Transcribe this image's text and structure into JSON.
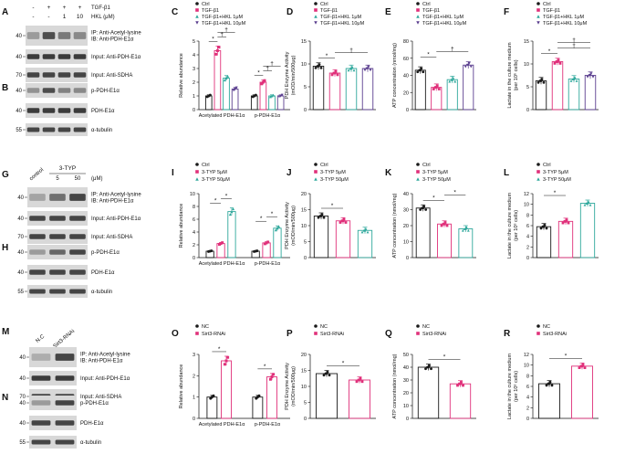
{
  "colors": {
    "black": "#1a1a1a",
    "pink": "#e0307a",
    "teal": "#2fa89c",
    "purple": "#5b3f8f",
    "band": "#2b2b2b",
    "blot_bg": "#d8d8d8"
  },
  "blots": [
    {
      "id": "A",
      "treat_rows": [
        {
          "label": "TGF-β1",
          "values": [
            "-",
            "+",
            "+",
            "+"
          ]
        },
        {
          "label": "HKL (μM)",
          "values": [
            "-",
            "-",
            "1",
            "10"
          ]
        }
      ],
      "panels": [
        {
          "mw": "40",
          "label_lines": [
            "IP: Anti-Acetyl-lysine",
            "IB: Anti-PDH-E1α"
          ],
          "intensity": [
            0.35,
            0.8,
            0.55,
            0.45
          ]
        },
        {
          "mw": "40",
          "label_lines": [
            "Input: Anti-PDH-E1α"
          ],
          "intensity": [
            0.9,
            0.9,
            0.9,
            0.9
          ]
        },
        {
          "mw": "70",
          "label_lines": [
            "Input: Anti-SDHA"
          ],
          "intensity": [
            0.85,
            0.85,
            0.85,
            0.85
          ]
        }
      ]
    },
    {
      "id": "B",
      "panels": [
        {
          "mw": "40",
          "label_lines": [
            "p-PDH-E1α"
          ],
          "intensity": [
            0.4,
            0.8,
            0.5,
            0.45
          ]
        },
        {
          "mw": "40",
          "label_lines": [
            "PDH-E1α"
          ],
          "intensity": [
            0.9,
            0.9,
            0.9,
            0.9
          ]
        },
        {
          "mw": "55",
          "label_lines": [
            "α-tubulin"
          ],
          "intensity": [
            0.85,
            0.85,
            0.85,
            0.85
          ]
        }
      ]
    },
    {
      "id": "G",
      "col_labels": [
        "control",
        "5",
        "50"
      ],
      "group_label": "3-TYP",
      "unit_label": "(μM)",
      "panels": [
        {
          "mw": "40",
          "label_lines": [
            "IP: Anti-Acetyl-lysine",
            "IB: Anti-PDH-E1α"
          ],
          "intensity": [
            0.3,
            0.6,
            0.85
          ]
        },
        {
          "mw": "40",
          "label_lines": [
            "Input: Anti-PDH-E1α"
          ],
          "intensity": [
            0.85,
            0.85,
            0.85
          ]
        },
        {
          "mw": "70",
          "label_lines": [
            "Input: Anti-SDHA"
          ],
          "intensity": [
            0.85,
            0.85,
            0.85
          ]
        }
      ]
    },
    {
      "id": "H",
      "panels": [
        {
          "mw": "40",
          "label_lines": [
            "p-PDH-E1α"
          ],
          "intensity": [
            0.35,
            0.65,
            0.85
          ]
        },
        {
          "mw": "40",
          "label_lines": [
            "PDH-E1α"
          ],
          "intensity": [
            0.85,
            0.85,
            0.85
          ]
        },
        {
          "mw": "55",
          "label_lines": [
            "α-tubulin"
          ],
          "intensity": [
            0.85,
            0.85,
            0.85
          ]
        }
      ]
    },
    {
      "id": "M",
      "col_labels": [
        "N.C",
        "Sirt3-RNAi"
      ],
      "panels": [
        {
          "mw": "40",
          "label_lines": [
            "IP: Anti-Acetyl-lysine",
            "IB: Anti-PDH-E1α"
          ],
          "intensity": [
            0.25,
            0.85
          ]
        },
        {
          "mw": "40",
          "label_lines": [
            "Input: Anti-PDH-E1α"
          ],
          "intensity": [
            0.9,
            0.9
          ]
        },
        {
          "mw": "70",
          "label_lines": [
            "Input: Anti-SDHA"
          ],
          "intensity": [
            0.85,
            0.85
          ]
        }
      ]
    },
    {
      "id": "N",
      "panels": [
        {
          "mw": "40",
          "label_lines": [
            "p-PDH-E1α"
          ],
          "intensity": [
            0.35,
            0.85
          ]
        },
        {
          "mw": "40",
          "label_lines": [
            "PDH-E1α"
          ],
          "intensity": [
            0.85,
            0.85
          ]
        },
        {
          "mw": "55",
          "label_lines": [
            "α-tubulin"
          ],
          "intensity": [
            0.85,
            0.85
          ]
        }
      ]
    }
  ],
  "chart_data": [
    {
      "id": "C",
      "type": "bar",
      "ylabel": "Relative abundance",
      "ylim": [
        0,
        5
      ],
      "yticks": [
        "0",
        "1",
        "2",
        "3",
        "4",
        "5"
      ],
      "categories": [
        "Acetylated PDH-E1α",
        "p-PDH-E1α"
      ],
      "series": [
        {
          "name": "Ctrl",
          "values": [
            1.0,
            1.0
          ]
        },
        {
          "name": "TGF-β1",
          "values": [
            4.3,
            2.0
          ]
        },
        {
          "name": "TGF-β1+HKL 1μM",
          "values": [
            2.3,
            1.0
          ]
        },
        {
          "name": "TGF-β1+HKL 10μM",
          "values": [
            1.5,
            1.0
          ]
        }
      ],
      "legend": [
        "Ctrl",
        "TGF-β1",
        "TGF-β1+HKL 1μM",
        "TGF-β1+HKL 10μM"
      ],
      "annotations": [
        "*",
        "†",
        "†",
        "*",
        "†",
        "†"
      ]
    },
    {
      "id": "D",
      "type": "bar",
      "ylabel": "PDH Enzyme Activity",
      "ylabel2": "(mOD/min/500μg)",
      "ylim": [
        0,
        15
      ],
      "yticks": [
        "0",
        "5",
        "10",
        "15"
      ],
      "categories": [
        "Ctrl",
        "TGF-β1",
        "TGF-β1+HKL 1μM",
        "TGF-β1+HKL 10μM"
      ],
      "series": [
        {
          "name": "value",
          "values": [
            9.5,
            8.0,
            9.0,
            9.0
          ]
        }
      ],
      "legend": [
        "Ctrl",
        "TGF-β1",
        "TGF-β1+HKL 1μM",
        "TGF-β1+HKL 10μM"
      ],
      "annotations": [
        "*",
        "†"
      ]
    },
    {
      "id": "E",
      "type": "bar",
      "ylabel": "ATP concentration (nmol/mg)",
      "ylim": [
        0,
        80
      ],
      "yticks": [
        "0",
        "20",
        "40",
        "60",
        "80"
      ],
      "categories": [
        "Ctrl",
        "TGF-β1",
        "TGF-β1+HKL 1μM",
        "TGF-β1+HKL 10μM"
      ],
      "series": [
        {
          "name": "value",
          "values": [
            46,
            26,
            35,
            52
          ]
        }
      ],
      "legend": [
        "Ctrl",
        "TGF-β1",
        "TGF-β1+HKL 1μM",
        "TGF-β1+HKL 10μM"
      ],
      "annotations": [
        "*",
        "†"
      ]
    },
    {
      "id": "F",
      "type": "bar",
      "ylabel": "Lactate in the culture medium",
      "ylabel2": "(per 10⁶ cells)",
      "ylim": [
        0,
        15
      ],
      "yticks": [
        "0",
        "5",
        "10",
        "15"
      ],
      "categories": [
        "Ctrl",
        "TGF-β1",
        "TGF-β1+HKL 1μM",
        "TGF-β1+HKL 10μM"
      ],
      "series": [
        {
          "name": "value",
          "values": [
            6.3,
            10.5,
            6.7,
            7.5
          ]
        }
      ],
      "legend": [
        "Ctrl",
        "TGF-β1",
        "TGF-β1+HKL 1μM",
        "TGF-β1+HKL 10μM"
      ],
      "annotations": [
        "*",
        "†",
        "†"
      ]
    },
    {
      "id": "I",
      "type": "bar",
      "ylabel": "Relative abundance",
      "ylim": [
        0,
        10
      ],
      "yticks": [
        "0",
        "2",
        "4",
        "6",
        "8",
        "10"
      ],
      "categories": [
        "Acetylated PDH-E1α",
        "p-PDH-E1α"
      ],
      "series": [
        {
          "name": "Ctrl",
          "values": [
            1.0,
            1.0
          ]
        },
        {
          "name": "3-TYP 5μM",
          "values": [
            2.2,
            2.3
          ]
        },
        {
          "name": "3-TYP 50μM",
          "values": [
            7.2,
            4.6
          ]
        }
      ],
      "legend": [
        "Ctrl",
        "3-TYP 5μM",
        "3-TYP 50μM"
      ],
      "annotations": [
        "*",
        "*",
        "*",
        "*"
      ]
    },
    {
      "id": "J",
      "type": "bar",
      "ylabel": "PDH Enzyme Activity",
      "ylabel2": "(mOD/min/500μg)",
      "ylim": [
        0,
        20
      ],
      "yticks": [
        "0",
        "5",
        "10",
        "15",
        "20"
      ],
      "categories": [
        "Ctrl",
        "3-TYP 5μM",
        "3-TYP 50μM"
      ],
      "series": [
        {
          "name": "value",
          "values": [
            13,
            11.5,
            8.5
          ]
        }
      ],
      "legend": [
        "Ctrl",
        "3-TYP 5μM",
        "3-TYP 50μM"
      ],
      "annotations": [
        "*"
      ]
    },
    {
      "id": "K",
      "type": "bar",
      "ylabel": "ATP concentration (nmol/mg)",
      "ylim": [
        0,
        40
      ],
      "yticks": [
        "0",
        "10",
        "20",
        "30",
        "40"
      ],
      "categories": [
        "Ctrl",
        "3-TYP 5μM",
        "3-TYP 50μM"
      ],
      "series": [
        {
          "name": "value",
          "values": [
            31,
            21,
            18
          ]
        }
      ],
      "legend": [
        "Ctrl",
        "3-TYP 5μM",
        "3-TYP 50μM"
      ],
      "annotations": [
        "*",
        "*"
      ]
    },
    {
      "id": "L",
      "type": "bar",
      "ylabel": "Lactate in the culture medium",
      "ylabel2": "(per 10⁶ cells)",
      "ylim": [
        0,
        12
      ],
      "yticks": [
        "0",
        "2",
        "4",
        "6",
        "8",
        "10",
        "12"
      ],
      "categories": [
        "Ctrl",
        "3-TYP 5μM",
        "3-TYP 50μM"
      ],
      "series": [
        {
          "name": "value",
          "values": [
            5.8,
            6.8,
            10.2
          ]
        }
      ],
      "legend": [
        "Ctrl",
        "3-TYP 5μM",
        "3-TYP 50μM"
      ],
      "annotations": [
        "*"
      ]
    },
    {
      "id": "O",
      "type": "bar",
      "ylabel": "Relative abundance",
      "ylim": [
        0,
        3
      ],
      "yticks": [
        "0",
        "1",
        "2",
        "3"
      ],
      "categories": [
        "Acetylated PDH-E1α",
        "p-PDH-E1α"
      ],
      "series": [
        {
          "name": "NC",
          "values": [
            1.0,
            1.0
          ]
        },
        {
          "name": "Sirt3-RNAi",
          "values": [
            2.7,
            1.95
          ]
        }
      ],
      "legend": [
        "NC",
        "Sirt3-RNAi"
      ],
      "annotations": [
        "*",
        "*"
      ]
    },
    {
      "id": "P",
      "type": "bar",
      "ylabel": "PDH Enzyme Activity",
      "ylabel2": "(mOD/min/500μg)",
      "ylim": [
        0,
        20
      ],
      "yticks": [
        "0",
        "5",
        "10",
        "15",
        "20"
      ],
      "categories": [
        "NC",
        "Sirt3-RNAi"
      ],
      "series": [
        {
          "name": "value",
          "values": [
            14,
            12
          ]
        }
      ],
      "legend": [
        "NC",
        "Sirt3-RNAi"
      ],
      "annotations": [
        "*"
      ]
    },
    {
      "id": "Q",
      "type": "bar",
      "ylabel": "ATP concentration (nmol/mg)",
      "ylim": [
        0,
        50
      ],
      "yticks": [
        "0",
        "10",
        "20",
        "30",
        "40",
        "50"
      ],
      "categories": [
        "NC",
        "Sirt3-RNAi"
      ],
      "series": [
        {
          "name": "value",
          "values": [
            40,
            27
          ]
        }
      ],
      "legend": [
        "NC",
        "Sirt3-RNAi"
      ],
      "annotations": [
        "*"
      ]
    },
    {
      "id": "R",
      "type": "bar",
      "ylabel": "Lactate in the culture medium",
      "ylabel2": "(per 10⁶ cells)",
      "ylim": [
        0,
        12
      ],
      "yticks": [
        "0",
        "2",
        "4",
        "6",
        "8",
        "10",
        "12"
      ],
      "categories": [
        "NC",
        "Sirt3-RNAi"
      ],
      "series": [
        {
          "name": "value",
          "values": [
            6.5,
            9.8
          ]
        }
      ],
      "legend": [
        "NC",
        "Sirt3-RNAi"
      ],
      "annotations": [
        "*"
      ]
    }
  ]
}
